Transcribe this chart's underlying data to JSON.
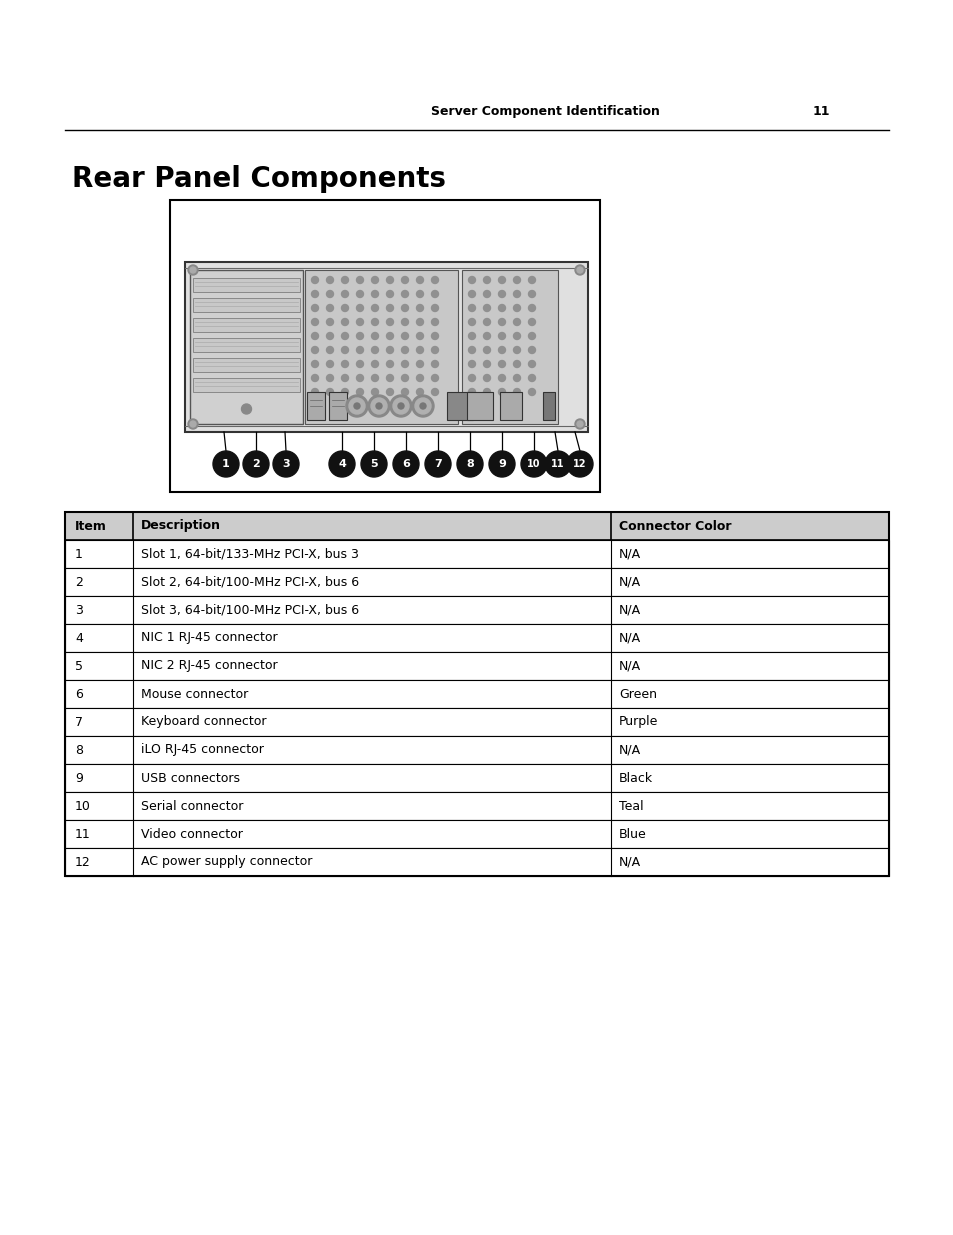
{
  "page_header_text": "Server Component Identification",
  "page_number": "11",
  "title": "Rear Panel Components",
  "table_headers": [
    "Item",
    "Description",
    "Connector Color"
  ],
  "table_rows": [
    [
      "1",
      "Slot 1, 64-bit/133-MHz PCI-X, bus 3",
      "N/A"
    ],
    [
      "2",
      "Slot 2, 64-bit/100-MHz PCI-X, bus 6",
      "N/A"
    ],
    [
      "3",
      "Slot 3, 64-bit/100-MHz PCI-X, bus 6",
      "N/A"
    ],
    [
      "4",
      "NIC 1 RJ-45 connector",
      "N/A"
    ],
    [
      "5",
      "NIC 2 RJ-45 connector",
      "N/A"
    ],
    [
      "6",
      "Mouse connector",
      "Green"
    ],
    [
      "7",
      "Keyboard connector",
      "Purple"
    ],
    [
      "8",
      "iLO RJ-45 connector",
      "N/A"
    ],
    [
      "9",
      "USB connectors",
      "Black"
    ],
    [
      "10",
      "Serial connector",
      "Teal"
    ],
    [
      "11",
      "Video connector",
      "Blue"
    ],
    [
      "12",
      "AC power supply connector",
      "N/A"
    ]
  ],
  "background_color": "#ffffff",
  "table_border_color": "#000000",
  "header_bg_color": "#cccccc",
  "bubble_color": "#111111",
  "bubble_text_color": "#ffffff",
  "diagram_box_color": "#000000"
}
